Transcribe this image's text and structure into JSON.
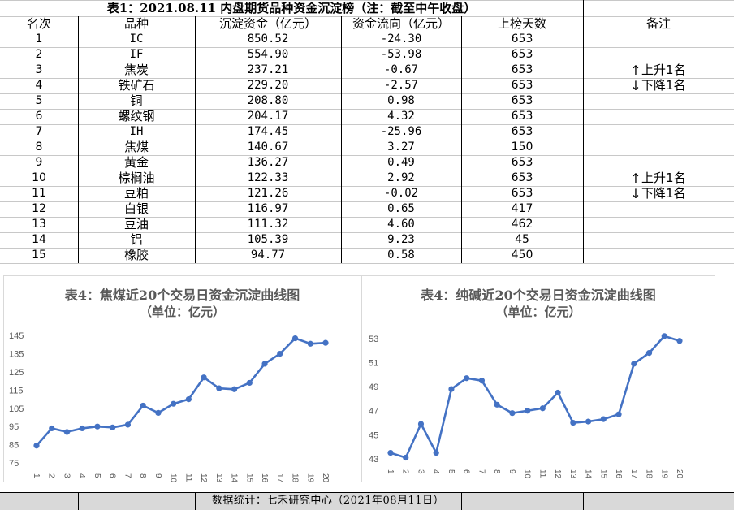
{
  "table": {
    "title": "表1：2021.08.11 内盘期货品种资金沉淀榜（注：截至中午收盘）",
    "headers": [
      "名次",
      "品种",
      "沉淀资金（亿元）",
      "资金流向（亿元）",
      "上榜天数",
      "备注"
    ],
    "rows": [
      {
        "rank": "1",
        "name": "IC",
        "fund": "850.52",
        "flow": "-24.30",
        "days": "653",
        "note": ""
      },
      {
        "rank": "2",
        "name": "IF",
        "fund": "554.90",
        "flow": "-53.98",
        "days": "653",
        "note": ""
      },
      {
        "rank": "3",
        "name": "焦炭",
        "fund": "237.21",
        "flow": "-0.67",
        "days": "653",
        "note": "上升1名"
      },
      {
        "rank": "4",
        "name": "铁矿石",
        "fund": "229.20",
        "flow": "-2.57",
        "days": "653",
        "note": "下降1名"
      },
      {
        "rank": "5",
        "name": "铜",
        "fund": "208.80",
        "flow": "0.98",
        "days": "653",
        "note": ""
      },
      {
        "rank": "6",
        "name": "螺纹钢",
        "fund": "204.17",
        "flow": "4.32",
        "days": "653",
        "note": ""
      },
      {
        "rank": "7",
        "name": "IH",
        "fund": "174.45",
        "flow": "-25.96",
        "days": "653",
        "note": ""
      },
      {
        "rank": "8",
        "name": "焦煤",
        "fund": "140.67",
        "flow": "3.27",
        "days": "150",
        "note": ""
      },
      {
        "rank": "9",
        "name": "黄金",
        "fund": "136.27",
        "flow": "0.49",
        "days": "653",
        "note": ""
      },
      {
        "rank": "10",
        "name": "棕榈油",
        "fund": "122.33",
        "flow": "2.92",
        "days": "653",
        "note": "上升1名"
      },
      {
        "rank": "11",
        "name": "豆粕",
        "fund": "121.26",
        "flow": "-0.02",
        "days": "653",
        "note": "下降1名"
      },
      {
        "rank": "12",
        "name": "白银",
        "fund": "116.97",
        "flow": "0.65",
        "days": "417",
        "note": ""
      },
      {
        "rank": "13",
        "name": "豆油",
        "fund": "111.32",
        "flow": "4.60",
        "days": "462",
        "note": ""
      },
      {
        "rank": "14",
        "name": "铝",
        "fund": "105.39",
        "flow": "9.23",
        "days": "45",
        "note": ""
      },
      {
        "rank": "15",
        "name": "橡胶",
        "fund": "94.77",
        "flow": "0.58",
        "days": "450",
        "note": ""
      }
    ]
  },
  "note_arrows": {
    "up": "↑",
    "down": "↓"
  },
  "colors": {
    "line": "#4472c4",
    "title": "#595959",
    "footer_bg": "#d9d9d9"
  },
  "chart_data": [
    {
      "type": "line",
      "title": "表4：焦煤近20个交易日资金沉淀曲线图",
      "subtitle": "（单位：亿元）",
      "x": [
        "1",
        "2",
        "3",
        "4",
        "5",
        "6",
        "7",
        "8",
        "9",
        "10",
        "11",
        "12",
        "13",
        "14",
        "15",
        "16",
        "17",
        "18",
        "19",
        "20"
      ],
      "values": [
        84.5,
        94,
        92,
        94,
        95,
        94.5,
        96,
        106.5,
        102.5,
        107.5,
        110,
        122,
        116,
        115.5,
        119,
        129.5,
        135,
        143.5,
        140.5,
        141
      ],
      "yticks": [
        75,
        85,
        95,
        105,
        115,
        125,
        135,
        145
      ],
      "ylim": [
        75,
        150
      ],
      "grid": false,
      "legend": "none"
    },
    {
      "type": "line",
      "title": "表4：纯碱近20个交易日资金沉淀曲线图",
      "subtitle": "（单位：亿元）",
      "x": [
        "1",
        "2",
        "3",
        "4",
        "5",
        "6",
        "7",
        "8",
        "9",
        "10",
        "11",
        "12",
        "13",
        "14",
        "15",
        "16",
        "17",
        "18",
        "19",
        "20"
      ],
      "values": [
        43.5,
        43.1,
        45.9,
        43.5,
        48.8,
        49.7,
        49.5,
        47.5,
        46.8,
        47.0,
        47.2,
        48.5,
        46.0,
        46.1,
        46.3,
        46.7,
        50.9,
        51.8,
        53.2,
        52.8
      ],
      "yticks": [
        43,
        45,
        47,
        49,
        51,
        53
      ],
      "ylim": [
        43,
        54
      ],
      "grid": false,
      "legend": "none"
    }
  ],
  "footer": {
    "text": "数据统计：七禾研究中心（2021年08月11日）"
  }
}
